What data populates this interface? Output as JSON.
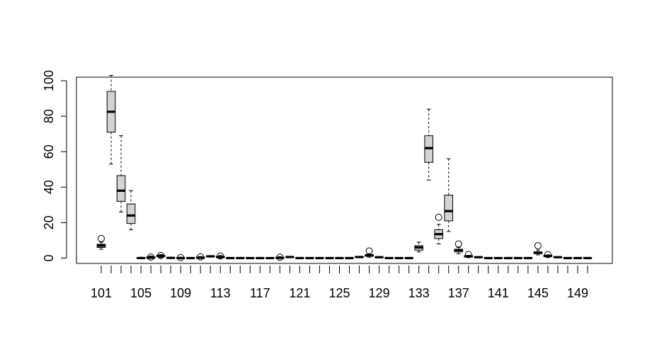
{
  "chart_data": {
    "type": "boxplot",
    "title": "",
    "xlabel": "",
    "ylabel": "",
    "ylim": [
      -3,
      102
    ],
    "y_ticks": [
      0,
      20,
      40,
      60,
      80,
      100
    ],
    "x_tick_labels": [
      "101",
      "105",
      "109",
      "113",
      "117",
      "121",
      "125",
      "129",
      "133",
      "137",
      "141",
      "145",
      "149"
    ],
    "x_labeled_categories": [
      101,
      105,
      109,
      113,
      117,
      121,
      125,
      129,
      133,
      137,
      141,
      145,
      149
    ],
    "grid": false,
    "legend": "none",
    "colors": {
      "box_fill": "#d3d3d3",
      "stroke": "#000000"
    },
    "boxes": [
      {
        "category": 101,
        "min": 5,
        "q1": 6,
        "median": 7,
        "q3": 7.8,
        "max": 9,
        "outliers": [
          11
        ]
      },
      {
        "category": 102,
        "min": 53,
        "q1": 71,
        "median": 82.5,
        "q3": 94,
        "max": 103,
        "outliers": []
      },
      {
        "category": 103,
        "min": 26,
        "q1": 32,
        "median": 38,
        "q3": 46.5,
        "max": 69,
        "outliers": []
      },
      {
        "category": 104,
        "min": 16,
        "q1": 19.5,
        "median": 24,
        "q3": 30.5,
        "max": 38,
        "outliers": []
      },
      {
        "category": 105,
        "min": 0,
        "q1": 0,
        "median": 0,
        "q3": 0.3,
        "max": 0.5,
        "outliers": []
      },
      {
        "category": 106,
        "min": 0,
        "q1": 0,
        "median": 0.2,
        "q3": 0.8,
        "max": 1.2,
        "outliers": [
          0.6
        ]
      },
      {
        "category": 107,
        "min": 0.3,
        "q1": 0.7,
        "median": 1.2,
        "q3": 1.6,
        "max": 2,
        "outliers": [
          1.5
        ]
      },
      {
        "category": 108,
        "min": 0,
        "q1": 0,
        "median": 0.1,
        "q3": 0.3,
        "max": 0.5,
        "outliers": []
      },
      {
        "category": 109,
        "min": 0,
        "q1": 0,
        "median": 0,
        "q3": 0.2,
        "max": 0.5,
        "outliers": [
          0.3
        ]
      },
      {
        "category": 110,
        "min": 0,
        "q1": 0,
        "median": 0,
        "q3": 0.2,
        "max": 0.4,
        "outliers": []
      },
      {
        "category": 111,
        "min": 0,
        "q1": 0,
        "median": 0.2,
        "q3": 0.6,
        "max": 0.9,
        "outliers": [
          0.7
        ]
      },
      {
        "category": 112,
        "min": 0.5,
        "q1": 0.8,
        "median": 1,
        "q3": 1.1,
        "max": 1.3,
        "outliers": []
      },
      {
        "category": 113,
        "min": 0,
        "q1": 0.2,
        "median": 0.6,
        "q3": 1,
        "max": 1.5,
        "outliers": [
          1.2
        ]
      },
      {
        "category": 114,
        "min": 0,
        "q1": 0,
        "median": 0,
        "q3": 0.2,
        "max": 0.4,
        "outliers": []
      },
      {
        "category": 115,
        "min": 0,
        "q1": 0,
        "median": 0,
        "q3": 0.2,
        "max": 0.4,
        "outliers": []
      },
      {
        "category": 116,
        "min": 0,
        "q1": 0,
        "median": 0,
        "q3": 0.1,
        "max": 0.3,
        "outliers": []
      },
      {
        "category": 117,
        "min": 0,
        "q1": 0,
        "median": 0,
        "q3": 0.2,
        "max": 0.4,
        "outliers": []
      },
      {
        "category": 118,
        "min": 0,
        "q1": 0,
        "median": 0,
        "q3": 0.2,
        "max": 0.4,
        "outliers": []
      },
      {
        "category": 119,
        "min": 0,
        "q1": 0,
        "median": 0.1,
        "q3": 0.4,
        "max": 0.8,
        "outliers": [
          0.5
        ]
      },
      {
        "category": 120,
        "min": 0.3,
        "q1": 0.5,
        "median": 0.6,
        "q3": 0.7,
        "max": 0.9,
        "outliers": []
      },
      {
        "category": 121,
        "min": 0,
        "q1": 0,
        "median": 0,
        "q3": 0.2,
        "max": 0.4,
        "outliers": []
      },
      {
        "category": 122,
        "min": 0,
        "q1": 0,
        "median": 0,
        "q3": 0.2,
        "max": 0.4,
        "outliers": []
      },
      {
        "category": 123,
        "min": 0,
        "q1": 0,
        "median": 0,
        "q3": 0.2,
        "max": 0.4,
        "outliers": []
      },
      {
        "category": 124,
        "min": 0,
        "q1": 0,
        "median": 0,
        "q3": 0.2,
        "max": 0.4,
        "outliers": []
      },
      {
        "category": 125,
        "min": 0,
        "q1": 0,
        "median": 0,
        "q3": 0.2,
        "max": 0.4,
        "outliers": []
      },
      {
        "category": 126,
        "min": 0,
        "q1": 0,
        "median": 0,
        "q3": 0.2,
        "max": 0.4,
        "outliers": []
      },
      {
        "category": 127,
        "min": 0.2,
        "q1": 0.4,
        "median": 0.6,
        "q3": 0.8,
        "max": 1,
        "outliers": []
      },
      {
        "category": 128,
        "min": 0.5,
        "q1": 1,
        "median": 1.5,
        "q3": 2,
        "max": 2.5,
        "outliers": [
          4
        ]
      },
      {
        "category": 129,
        "min": 0.2,
        "q1": 0.4,
        "median": 0.5,
        "q3": 0.6,
        "max": 0.8,
        "outliers": []
      },
      {
        "category": 130,
        "min": 0,
        "q1": 0,
        "median": 0,
        "q3": 0.2,
        "max": 0.4,
        "outliers": []
      },
      {
        "category": 131,
        "min": 0,
        "q1": 0,
        "median": 0,
        "q3": 0.2,
        "max": 0.4,
        "outliers": []
      },
      {
        "category": 132,
        "min": 0,
        "q1": 0,
        "median": 0,
        "q3": 0.2,
        "max": 0.4,
        "outliers": []
      },
      {
        "category": 133,
        "min": 3.5,
        "q1": 4.5,
        "median": 6,
        "q3": 7,
        "max": 9,
        "outliers": []
      },
      {
        "category": 134,
        "min": 44,
        "q1": 54,
        "median": 62,
        "q3": 69,
        "max": 84,
        "outliers": []
      },
      {
        "category": 135,
        "min": 8,
        "q1": 11,
        "median": 13.5,
        "q3": 16,
        "max": 19,
        "outliers": [
          23
        ]
      },
      {
        "category": 136,
        "min": 15,
        "q1": 21,
        "median": 26.5,
        "q3": 35.5,
        "max": 56,
        "outliers": []
      },
      {
        "category": 137,
        "min": 2.5,
        "q1": 3.5,
        "median": 4.5,
        "q3": 5,
        "max": 6,
        "outliers": [
          8
        ]
      },
      {
        "category": 138,
        "min": 0.3,
        "q1": 0.6,
        "median": 1,
        "q3": 1.3,
        "max": 1.6,
        "outliers": [
          2
        ]
      },
      {
        "category": 139,
        "min": 0.2,
        "q1": 0.4,
        "median": 0.5,
        "q3": 0.6,
        "max": 0.8,
        "outliers": []
      },
      {
        "category": 140,
        "min": 0,
        "q1": 0,
        "median": 0,
        "q3": 0.2,
        "max": 0.4,
        "outliers": []
      },
      {
        "category": 141,
        "min": 0,
        "q1": 0,
        "median": 0,
        "q3": 0.2,
        "max": 0.4,
        "outliers": []
      },
      {
        "category": 142,
        "min": 0,
        "q1": 0,
        "median": 0,
        "q3": 0.2,
        "max": 0.4,
        "outliers": []
      },
      {
        "category": 143,
        "min": 0,
        "q1": 0,
        "median": 0,
        "q3": 0.2,
        "max": 0.4,
        "outliers": []
      },
      {
        "category": 144,
        "min": 0,
        "q1": 0,
        "median": 0,
        "q3": 0.2,
        "max": 0.4,
        "outliers": []
      },
      {
        "category": 145,
        "min": 1.8,
        "q1": 2.5,
        "median": 3,
        "q3": 3.5,
        "max": 4.5,
        "outliers": [
          7
        ]
      },
      {
        "category": 146,
        "min": 0.5,
        "q1": 0.9,
        "median": 1.2,
        "q3": 1.5,
        "max": 1.8,
        "outliers": [
          2
        ]
      },
      {
        "category": 147,
        "min": 0.2,
        "q1": 0.4,
        "median": 0.5,
        "q3": 0.6,
        "max": 0.8,
        "outliers": []
      },
      {
        "category": 148,
        "min": 0,
        "q1": 0,
        "median": 0,
        "q3": 0.2,
        "max": 0.4,
        "outliers": []
      },
      {
        "category": 149,
        "min": 0,
        "q1": 0,
        "median": 0,
        "q3": 0.2,
        "max": 0.4,
        "outliers": []
      },
      {
        "category": 150,
        "min": 0,
        "q1": 0,
        "median": 0,
        "q3": 0.2,
        "max": 0.4,
        "outliers": []
      }
    ]
  }
}
